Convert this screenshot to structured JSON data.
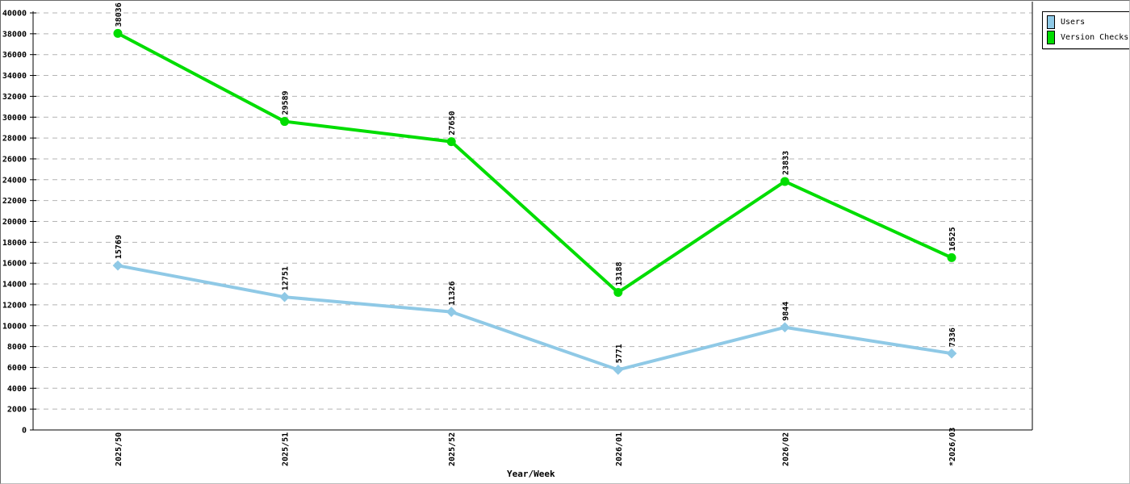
{
  "chart_data": {
    "type": "line",
    "title": "",
    "xlabel": "Year/Week",
    "ylabel": "",
    "categories": [
      "2025/50",
      "2025/51",
      "2025/52",
      "2026/01",
      "2026/02",
      "*2026/03"
    ],
    "series": [
      {
        "name": "Users",
        "color": "#8FC9E6",
        "marker": "diamond",
        "values": [
          15769,
          12751,
          11326,
          5771,
          9844,
          7336
        ]
      },
      {
        "name": "Version Checks",
        "color": "#00DD00",
        "marker": "circle",
        "values": [
          38036,
          29589,
          27650,
          13188,
          23833,
          16525
        ]
      }
    ],
    "ylim": [
      0,
      40000
    ],
    "ytick_step": 2000,
    "grid": "horizontal-dashed",
    "gridline_color": "#b4b4b4",
    "axis_color": "#000000",
    "legend_position": "top-right",
    "point_labels": true,
    "x_label_rotation": -90
  }
}
